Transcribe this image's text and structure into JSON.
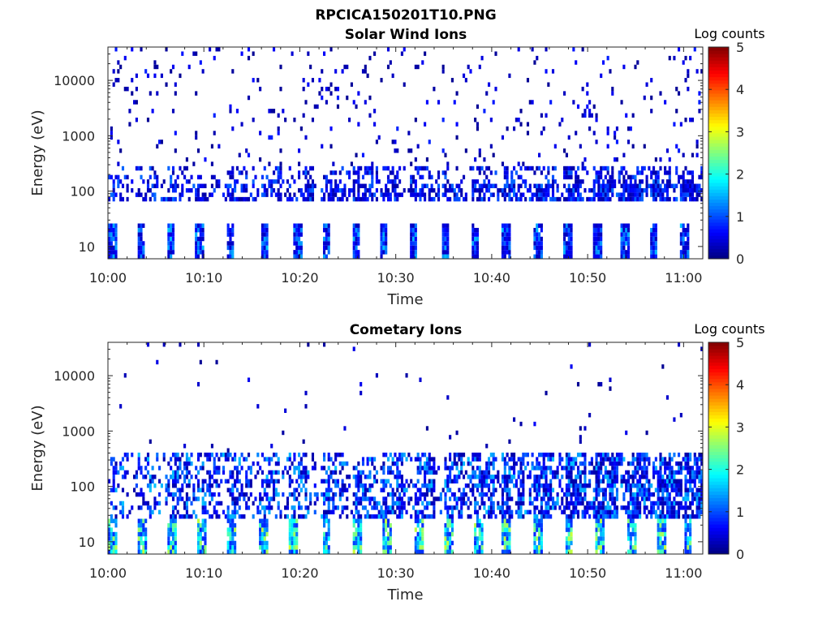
{
  "figure": {
    "title": "RPCICA150201T10.PNG"
  },
  "colorbar": {
    "label": "Log counts",
    "ticks": [
      "0",
      "1",
      "2",
      "3",
      "4",
      "5"
    ],
    "range": [
      0,
      5
    ],
    "colormap": "jet"
  },
  "chart_data": [
    {
      "type": "heatmap",
      "title": "Solar Wind Ions",
      "xlabel": "Time",
      "ylabel": "Energy (eV)",
      "x_ticks": [
        "10:00",
        "10:10",
        "10:20",
        "10:30",
        "10:40",
        "10:50",
        "11:00"
      ],
      "y_ticks": [
        "10",
        "100",
        "1000",
        "10000"
      ],
      "y_scale": "log",
      "ylim": [
        6,
        40000
      ],
      "xlim": [
        "10:00",
        "11:02"
      ],
      "colorbar_label": "Log counts",
      "colorbar_range": [
        0,
        5
      ],
      "cycle_starts_min": [
        0.0,
        3.0,
        6.1,
        9.1,
        12.3,
        15.9,
        19.3,
        22.3,
        25.4,
        28.3,
        31.4,
        34.7,
        37.8,
        41.0,
        44.4,
        47.4,
        50.5,
        53.5,
        56.4,
        59.6
      ],
      "bands": [
        {
          "energy_ev": [
            6,
            28
          ],
          "level": [
            0.3,
            1.6
          ],
          "description": "low-energy band, dense"
        },
        {
          "energy_ev": [
            70,
            300
          ],
          "level": [
            0.2,
            1.2
          ],
          "description": "main solar wind band near 100 eV"
        },
        {
          "energy_ev": [
            300,
            40000
          ],
          "level": [
            0.1,
            0.8
          ],
          "description": "sparse high-energy counts"
        }
      ]
    },
    {
      "type": "heatmap",
      "title": "Cometary Ions",
      "xlabel": "Time",
      "ylabel": "Energy (eV)",
      "x_ticks": [
        "10:00",
        "10:10",
        "10:20",
        "10:30",
        "10:40",
        "10:50",
        "11:00"
      ],
      "y_ticks": [
        "10",
        "100",
        "1000",
        "10000"
      ],
      "y_scale": "log",
      "ylim": [
        6,
        40000
      ],
      "xlim": [
        "10:00",
        "11:02"
      ],
      "colorbar_label": "Log counts",
      "colorbar_range": [
        0,
        5
      ],
      "cycle_starts_min": [
        0.0,
        3.2,
        6.3,
        9.3,
        12.5,
        15.8,
        18.9,
        22.3,
        25.6,
        28.6,
        31.9,
        35.0,
        38.1,
        41.1,
        44.4,
        47.6,
        50.9,
        54.1,
        57.3,
        60.0
      ],
      "bands": [
        {
          "energy_ev": [
            6,
            28
          ],
          "level": [
            0.8,
            2.9
          ],
          "description": "low-energy band, bright (cyan-yellow)"
        },
        {
          "energy_ev": [
            28,
            400
          ],
          "level": [
            0.2,
            1.6
          ],
          "description": "cometary ion band, widening with time"
        },
        {
          "energy_ev": [
            400,
            40000
          ],
          "level": [
            0.1,
            0.6
          ],
          "description": "sparse high-energy counts"
        }
      ]
    }
  ]
}
